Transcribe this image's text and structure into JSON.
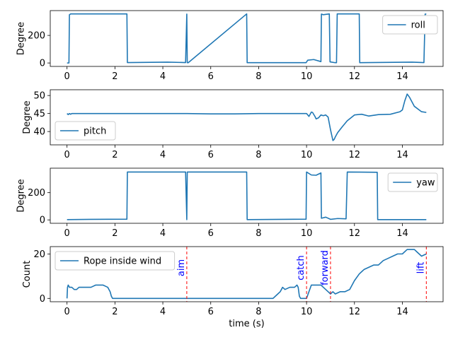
{
  "chart_data": [
    {
      "type": "line",
      "ylabel": "Degree",
      "xlim": [
        -0.7,
        15.7
      ],
      "ylim": [
        -25,
        380
      ],
      "xticks": [
        0,
        2,
        4,
        6,
        8,
        10,
        12,
        14
      ],
      "yticks": [
        0,
        200
      ],
      "legend": "top-right",
      "series": [
        {
          "name": "roll",
          "x": [
            0,
            0.08,
            0.1,
            0.15,
            2.5,
            2.52,
            4.2,
            4.95,
            5.0,
            5.02,
            5.06,
            7.5,
            7.52,
            9.98,
            10.05,
            10.3,
            10.6,
            10.62,
            10.7,
            10.95,
            10.98,
            11.2,
            11.25,
            11.28,
            12.2,
            12.22,
            14.4,
            14.9,
            14.95,
            15.0
          ],
          "y": [
            0,
            0,
            350,
            356,
            356,
            3,
            6,
            3,
            355,
            2,
            2,
            356,
            2,
            2,
            20,
            25,
            10,
            355,
            350,
            356,
            8,
            2,
            2,
            356,
            356,
            2,
            6,
            3,
            355,
            355
          ]
        }
      ]
    },
    {
      "type": "line",
      "ylabel": "Degree",
      "xlim": [
        -0.7,
        15.7
      ],
      "ylim": [
        36.3,
        51.6
      ],
      "xticks": [
        0,
        2,
        4,
        6,
        8,
        10,
        12,
        14
      ],
      "yticks": [
        40,
        45,
        50
      ],
      "legend": "bottom-left",
      "series": [
        {
          "name": "pitch",
          "x": [
            0,
            0.05,
            0.1,
            0.15,
            0.2,
            1,
            2,
            3,
            4,
            5,
            6,
            7,
            8,
            9,
            10,
            10.1,
            10.2,
            10.25,
            10.35,
            10.4,
            10.5,
            10.6,
            10.7,
            10.8,
            10.9,
            11.0,
            11.05,
            11.1,
            11.15,
            11.2,
            11.3,
            11.5,
            11.7,
            12.0,
            12.3,
            12.6,
            13.0,
            13.5,
            13.9,
            14.0,
            14.1,
            14.2,
            14.3,
            14.5,
            14.8,
            15.0
          ],
          "y": [
            45,
            44.7,
            45,
            44.8,
            45,
            45,
            45,
            45,
            45,
            45,
            44.9,
            44.9,
            45,
            45,
            45,
            44.2,
            45.4,
            45.3,
            44.2,
            43.5,
            43.8,
            44.6,
            44.4,
            44.6,
            44.0,
            40.5,
            39.0,
            37.5,
            37.8,
            38.5,
            39.7,
            41.4,
            43.0,
            44.6,
            44.8,
            44.3,
            44.7,
            44.8,
            45.5,
            46.0,
            48.5,
            50.4,
            49.5,
            47.0,
            45.5,
            45.3
          ]
        }
      ]
    },
    {
      "type": "line",
      "ylabel": "Degree",
      "xlim": [
        -0.7,
        15.7
      ],
      "ylim": [
        -25,
        380
      ],
      "xticks": [
        0,
        2,
        4,
        6,
        8,
        10,
        12,
        14
      ],
      "yticks": [
        0,
        200
      ],
      "legend": "top-right",
      "series": [
        {
          "name": "yaw",
          "x": [
            0,
            1,
            2.5,
            2.52,
            4.95,
            5.0,
            5.02,
            5.06,
            7.5,
            7.52,
            9.98,
            10.0,
            10.2,
            10.4,
            10.6,
            10.62,
            10.8,
            11.0,
            11.3,
            11.65,
            11.7,
            12.95,
            12.97,
            15.0
          ],
          "y": [
            2,
            4,
            5,
            352,
            352,
            2,
            352,
            352,
            352,
            2,
            5,
            352,
            330,
            328,
            345,
            12,
            20,
            4,
            10,
            8,
            352,
            350,
            2,
            2
          ]
        }
      ]
    },
    {
      "type": "line",
      "ylabel": "Count",
      "xlabel": "time (s)",
      "xlim": [
        -0.7,
        15.7
      ],
      "ylim": [
        -1.5,
        23.3
      ],
      "xticks": [
        0,
        2,
        4,
        6,
        8,
        10,
        12,
        14
      ],
      "yticks": [
        0,
        20
      ],
      "legend": "top-left",
      "events": [
        {
          "x": 5.0,
          "label": "aim"
        },
        {
          "x": 10.0,
          "label": "catch"
        },
        {
          "x": 11.0,
          "label": "forward"
        },
        {
          "x": 15.0,
          "label": "lift"
        }
      ],
      "series": [
        {
          "name": "Rope inside wind",
          "x": [
            0,
            0.02,
            0.05,
            0.1,
            0.2,
            0.3,
            0.4,
            0.5,
            0.6,
            0.7,
            0.9,
            1.0,
            1.2,
            1.4,
            1.5,
            1.7,
            1.8,
            1.85,
            1.9,
            2.0,
            8.6,
            8.7,
            8.8,
            8.9,
            9.0,
            9.1,
            9.3,
            9.5,
            9.6,
            9.65,
            9.7,
            9.75,
            10.0,
            10.2,
            10.4,
            10.6,
            10.7,
            10.8,
            10.9,
            11.0,
            11.1,
            11.2,
            11.4,
            11.6,
            11.8,
            12.0,
            12.2,
            12.4,
            12.6,
            12.8,
            13.0,
            13.2,
            13.4,
            13.6,
            13.8,
            14.0,
            14.2,
            14.5,
            14.6,
            14.7,
            14.8,
            15.0
          ],
          "y": [
            0,
            5,
            6,
            5,
            5,
            4,
            4,
            5,
            5,
            5,
            5,
            5,
            6,
            6,
            6,
            5,
            3,
            1,
            0,
            0,
            0,
            1,
            2,
            3,
            5,
            4,
            5,
            5,
            6,
            5,
            1,
            0,
            0,
            6,
            6,
            6,
            5,
            4,
            3,
            2,
            3,
            2,
            3,
            3,
            4,
            8,
            11,
            13,
            14,
            15,
            15,
            17,
            18,
            19,
            20,
            20,
            22,
            22,
            21,
            20,
            19,
            20
          ]
        }
      ]
    }
  ]
}
